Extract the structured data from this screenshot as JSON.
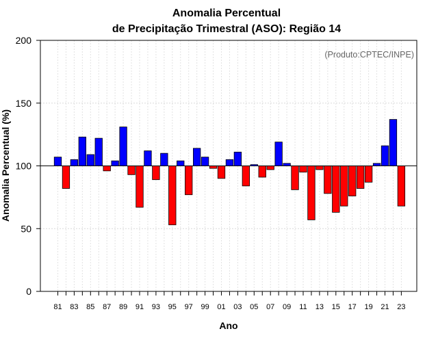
{
  "chart_data": {
    "type": "bar",
    "title_line1": "Anomalia Percentual",
    "title_line2": "de Precipitação Trimestral (ASO): Região 14",
    "credit": "(Produto:CPTEC/INPE)",
    "xlabel": "Ano",
    "ylabel": "Anomalia Percentual (%)",
    "ylim": [
      0,
      200
    ],
    "yticks": [
      "0",
      "50",
      "100",
      "150",
      "200"
    ],
    "baseline": 100,
    "grid": true,
    "colors": {
      "above": "#0000ff",
      "below": "#ff0000"
    },
    "categories": [
      "81",
      "82",
      "83",
      "84",
      "85",
      "86",
      "87",
      "88",
      "89",
      "90",
      "91",
      "92",
      "93",
      "94",
      "95",
      "96",
      "97",
      "98",
      "99",
      "00",
      "01",
      "02",
      "03",
      "04",
      "05",
      "06",
      "07",
      "08",
      "09",
      "10",
      "11",
      "12",
      "13",
      "14",
      "15",
      "16",
      "17",
      "18",
      "19",
      "20",
      "21",
      "22",
      "23"
    ],
    "xtick_labels": [
      "81",
      "83",
      "85",
      "87",
      "89",
      "91",
      "93",
      "95",
      "97",
      "99",
      "01",
      "03",
      "05",
      "07",
      "09",
      "11",
      "13",
      "15",
      "17",
      "19",
      "21",
      "23"
    ],
    "values": [
      107,
      82,
      105,
      123,
      109,
      122,
      96,
      104,
      131,
      93,
      67,
      112,
      89,
      110,
      53,
      104,
      77,
      114,
      107,
      98,
      90,
      105,
      111,
      84,
      101,
      91,
      97,
      119,
      102,
      81,
      95,
      57,
      97,
      78,
      63,
      68,
      76,
      82,
      87,
      102,
      116,
      137,
      68
    ]
  }
}
